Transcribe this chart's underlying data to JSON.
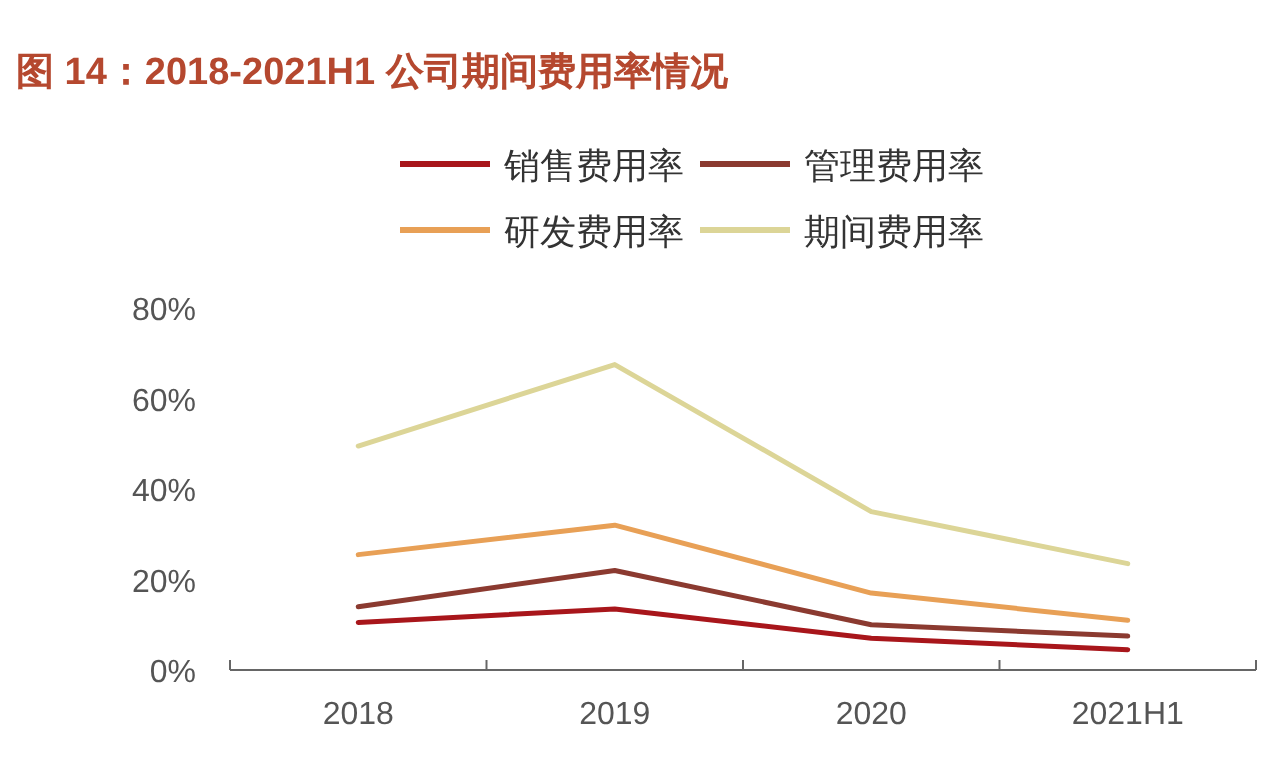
{
  "chart_data": {
    "type": "line",
    "title": "图 14：2018-2021H1 公司期间费用率情况",
    "categories": [
      "2018",
      "2019",
      "2020",
      "2021H1"
    ],
    "series": [
      {
        "name": "销售费用率",
        "color": "#a8161b",
        "values": [
          10.5,
          13.5,
          7,
          4.5
        ]
      },
      {
        "name": "管理费用率",
        "color": "#8b3a30",
        "values": [
          14,
          22,
          10,
          7.5
        ]
      },
      {
        "name": "研发费用率",
        "color": "#e8a056",
        "values": [
          25.5,
          32,
          17,
          11
        ]
      },
      {
        "name": "期间费用率",
        "color": "#dcd597",
        "values": [
          49.5,
          67.5,
          35,
          23.5
        ]
      }
    ],
    "ylim": [
      0,
      80
    ],
    "yticks": [
      {
        "value": 0,
        "label": "0%"
      },
      {
        "value": 20,
        "label": "20%"
      },
      {
        "value": 40,
        "label": "40%"
      },
      {
        "value": 60,
        "label": "60%"
      },
      {
        "value": 80,
        "label": "80%"
      }
    ],
    "grid": false,
    "legend": "top",
    "marker": "none",
    "line_style": "solid"
  }
}
